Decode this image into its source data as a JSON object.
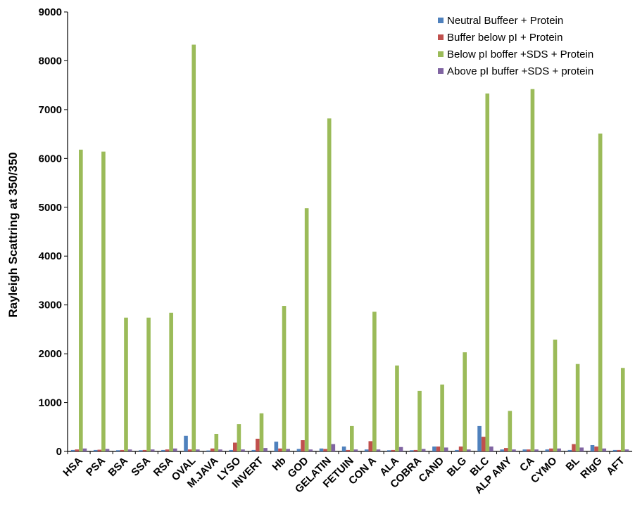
{
  "chart_data": {
    "type": "bar",
    "title": "",
    "xlabel": "",
    "ylabel": "Rayleigh  Scattring at 350/350",
    "ylim": [
      0,
      9000
    ],
    "yticks": [
      0,
      1000,
      2000,
      3000,
      4000,
      5000,
      6000,
      7000,
      8000,
      9000
    ],
    "grid": false,
    "legend_position": "top-right",
    "categories": [
      "HSA",
      "PSA",
      "BSA",
      "SSA",
      "RSA",
      "OVAL",
      "M.JAVA",
      "LYSO",
      "INVERT",
      "Hb",
      "GOD",
      "GELATIN",
      "FETUIN",
      "CON A",
      "ALA",
      "COBRA",
      "CAND",
      "BLG",
      "BLC",
      "ALP AMY",
      "CA",
      "CYMO",
      "BL",
      "RIgG",
      "AFT"
    ],
    "series": [
      {
        "name": "Neutral Buffeer + Protein",
        "color": "#4f81bd",
        "values": [
          30,
          30,
          25,
          25,
          30,
          320,
          20,
          30,
          30,
          200,
          50,
          60,
          100,
          40,
          25,
          25,
          100,
          30,
          520,
          40,
          40,
          40,
          30,
          130,
          30
        ]
      },
      {
        "name": "Buffer below pI + Protein",
        "color": "#c0504d",
        "values": [
          40,
          35,
          30,
          30,
          40,
          40,
          60,
          180,
          260,
          60,
          230,
          50,
          30,
          210,
          30,
          30,
          100,
          100,
          300,
          70,
          40,
          60,
          150,
          100,
          30
        ]
      },
      {
        "name": "Below pI boffer +SDS + Protein",
        "color": "#9bbb59",
        "values": [
          6180,
          6140,
          2740,
          2740,
          2840,
          8330,
          360,
          560,
          780,
          2980,
          4980,
          6820,
          520,
          2860,
          1760,
          1240,
          1370,
          2030,
          7330,
          830,
          7420,
          2290,
          1790,
          6510,
          1710
        ]
      },
      {
        "name": "Above pI buffer +SDS + protein",
        "color": "#8064a2",
        "values": [
          60,
          50,
          40,
          40,
          60,
          40,
          40,
          40,
          70,
          50,
          40,
          150,
          40,
          40,
          90,
          50,
          80,
          40,
          100,
          40,
          40,
          60,
          80,
          60,
          40
        ]
      }
    ]
  }
}
